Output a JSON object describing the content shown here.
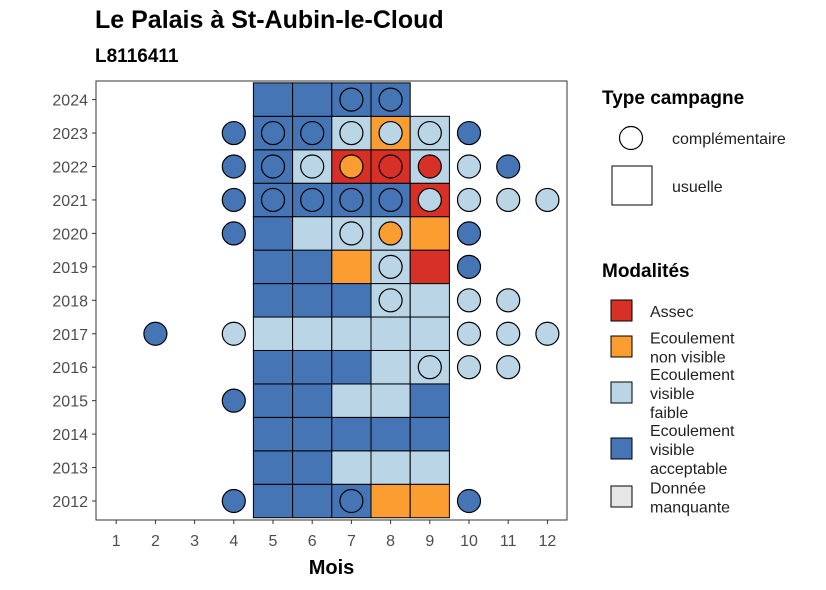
{
  "title": "Le Palais à St-Aubin-le-Cloud",
  "subtitle": "L8116411",
  "chart_data": {
    "type": "heatmap",
    "xlabel": "Mois",
    "ylabel": "",
    "x_ticks": [
      "1",
      "2",
      "3",
      "4",
      "5",
      "6",
      "7",
      "8",
      "9",
      "10",
      "11",
      "12"
    ],
    "y_ticks": [
      "2012",
      "2013",
      "2014",
      "2015",
      "2016",
      "2017",
      "2018",
      "2019",
      "2020",
      "2021",
      "2022",
      "2023",
      "2024"
    ],
    "xlim": [
      0.5,
      12.5
    ],
    "ylim": [
      2011.5,
      2024.5
    ],
    "colors": {
      "assec": "#d73027",
      "ecoulement_non_visible": "#fc9d32",
      "ecoulement_visible_faible": "#bad6e6",
      "ecoulement_visible_acceptable": "#4575b4",
      "donnee_manquante": "#e6e6e6"
    },
    "usuelle": [
      {
        "year": 2012,
        "cells": [
          5,
          "A"
        ],
        "m": [
          [
            5,
            "A"
          ],
          [
            6,
            "A"
          ],
          [
            7,
            "A"
          ],
          [
            8,
            "N"
          ],
          [
            9,
            "N"
          ]
        ]
      },
      {
        "year": 2013,
        "m": [
          [
            5,
            "A"
          ],
          [
            6,
            "A"
          ],
          [
            7,
            "F"
          ],
          [
            8,
            "F"
          ],
          [
            9,
            "F"
          ]
        ]
      },
      {
        "year": 2014,
        "m": [
          [
            5,
            "A"
          ],
          [
            6,
            "A"
          ],
          [
            7,
            "A"
          ],
          [
            8,
            "A"
          ],
          [
            9,
            "A"
          ]
        ]
      },
      {
        "year": 2015,
        "m": [
          [
            5,
            "A"
          ],
          [
            6,
            "A"
          ],
          [
            7,
            "F"
          ],
          [
            8,
            "F"
          ],
          [
            9,
            "A"
          ]
        ]
      },
      {
        "year": 2016,
        "m": [
          [
            5,
            "A"
          ],
          [
            6,
            "A"
          ],
          [
            7,
            "A"
          ],
          [
            8,
            "F"
          ],
          [
            9,
            "F"
          ]
        ]
      },
      {
        "year": 2017,
        "m": [
          [
            5,
            "F"
          ],
          [
            6,
            "F"
          ],
          [
            7,
            "F"
          ],
          [
            8,
            "F"
          ],
          [
            9,
            "F"
          ]
        ]
      },
      {
        "year": 2018,
        "m": [
          [
            5,
            "A"
          ],
          [
            6,
            "A"
          ],
          [
            7,
            "A"
          ],
          [
            8,
            "F"
          ],
          [
            9,
            "F"
          ]
        ]
      },
      {
        "year": 2019,
        "m": [
          [
            5,
            "A"
          ],
          [
            6,
            "A"
          ],
          [
            7,
            "N"
          ],
          [
            8,
            "F"
          ],
          [
            9,
            "S"
          ]
        ]
      },
      {
        "year": 2020,
        "m": [
          [
            5,
            "A"
          ],
          [
            6,
            "F"
          ],
          [
            7,
            "F"
          ],
          [
            8,
            "F"
          ],
          [
            9,
            "N"
          ]
        ]
      },
      {
        "year": 2021,
        "m": [
          [
            5,
            "A"
          ],
          [
            6,
            "A"
          ],
          [
            7,
            "A"
          ],
          [
            8,
            "A"
          ],
          [
            9,
            "S"
          ]
        ]
      },
      {
        "year": 2022,
        "m": [
          [
            5,
            "A"
          ],
          [
            6,
            "F"
          ],
          [
            7,
            "S"
          ],
          [
            8,
            "S"
          ],
          [
            9,
            "F"
          ]
        ]
      },
      {
        "year": 2023,
        "m": [
          [
            5,
            "A"
          ],
          [
            6,
            "A"
          ],
          [
            7,
            "F"
          ],
          [
            8,
            "N"
          ],
          [
            9,
            "F"
          ]
        ]
      },
      {
        "year": 2024,
        "m": [
          [
            5,
            "A"
          ],
          [
            6,
            "A"
          ],
          [
            7,
            "A"
          ],
          [
            8,
            "A"
          ]
        ]
      }
    ],
    "complementaire": [
      {
        "year": 2012,
        "m": [
          [
            4,
            "A"
          ],
          [
            7,
            "A"
          ],
          [
            10,
            "A"
          ]
        ]
      },
      {
        "year": 2015,
        "m": [
          [
            4,
            "A"
          ]
        ]
      },
      {
        "year": 2016,
        "m": [
          [
            9,
            "F"
          ],
          [
            10,
            "F"
          ],
          [
            11,
            "F"
          ]
        ]
      },
      {
        "year": 2017,
        "m": [
          [
            2,
            "A"
          ],
          [
            4,
            "F"
          ],
          [
            10,
            "F"
          ],
          [
            11,
            "F"
          ],
          [
            12,
            "F"
          ]
        ]
      },
      {
        "year": 2018,
        "m": [
          [
            8,
            "F"
          ],
          [
            10,
            "F"
          ],
          [
            11,
            "F"
          ]
        ]
      },
      {
        "year": 2019,
        "m": [
          [
            8,
            "F"
          ],
          [
            10,
            "A"
          ]
        ]
      },
      {
        "year": 2020,
        "m": [
          [
            4,
            "A"
          ],
          [
            7,
            "F"
          ],
          [
            8,
            "N"
          ],
          [
            10,
            "A"
          ]
        ]
      },
      {
        "year": 2021,
        "m": [
          [
            4,
            "A"
          ],
          [
            5,
            "A"
          ],
          [
            6,
            "A"
          ],
          [
            7,
            "A"
          ],
          [
            8,
            "A"
          ],
          [
            9,
            "F"
          ],
          [
            10,
            "F"
          ],
          [
            11,
            "F"
          ],
          [
            12,
            "F"
          ]
        ]
      },
      {
        "year": 2022,
        "m": [
          [
            4,
            "A"
          ],
          [
            5,
            "A"
          ],
          [
            6,
            "F"
          ],
          [
            7,
            "N"
          ],
          [
            8,
            "S"
          ],
          [
            9,
            "S"
          ],
          [
            10,
            "F"
          ],
          [
            11,
            "A"
          ]
        ]
      },
      {
        "year": 2023,
        "m": [
          [
            4,
            "A"
          ],
          [
            5,
            "A"
          ],
          [
            6,
            "A"
          ],
          [
            7,
            "F"
          ],
          [
            8,
            "F"
          ],
          [
            9,
            "F"
          ],
          [
            10,
            "A"
          ]
        ]
      },
      {
        "year": 2024,
        "m": [
          [
            7,
            "A"
          ],
          [
            8,
            "A"
          ]
        ]
      }
    ],
    "legend_type": {
      "title": "Type campagne",
      "items": [
        "complémentaire",
        "usuelle"
      ]
    },
    "legend_modalites": {
      "title": "Modalités",
      "items": [
        {
          "key": "S",
          "lines": [
            "Assec"
          ]
        },
        {
          "key": "N",
          "lines": [
            "Ecoulement",
            "non visible"
          ]
        },
        {
          "key": "F",
          "lines": [
            "Ecoulement",
            "visible",
            "faible"
          ]
        },
        {
          "key": "A",
          "lines": [
            "Ecoulement",
            "visible",
            "acceptable"
          ]
        },
        {
          "key": "M",
          "lines": [
            "Donnée",
            "manquante"
          ]
        }
      ]
    }
  }
}
